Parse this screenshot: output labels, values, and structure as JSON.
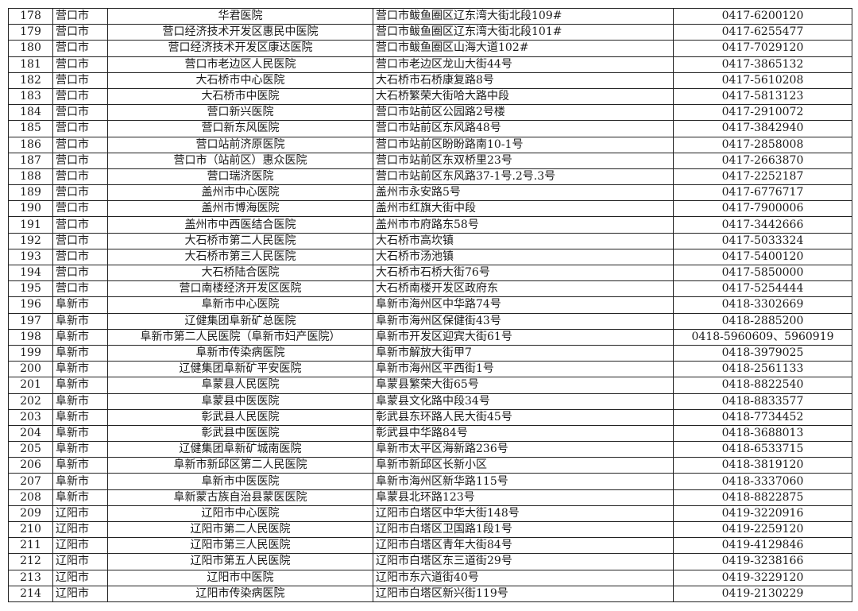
{
  "rows": [
    [
      "178",
      "营口市",
      "华君医院",
      "营口市鲅鱼圈区辽东湾大街北段109#",
      "0417-6200120"
    ],
    [
      "179",
      "营口市",
      "营口经济技术开发区惠民中医院",
      "营口市鲅鱼圈区辽东湾大街北段101#",
      "0417-6255477"
    ],
    [
      "180",
      "营口市",
      "营口经济技术开发区康达医院",
      "营口市鲅鱼圈区山海大道102#",
      "0417-7029120"
    ],
    [
      "181",
      "营口市",
      "营口市老边区人民医院",
      "营口市老边区龙山大街44号",
      "0417-3865132"
    ],
    [
      "182",
      "营口市",
      "大石桥市中心医院",
      "大石桥市石桥康复路8号",
      "0417-5610208"
    ],
    [
      "183",
      "营口市",
      "大石桥市中医院",
      "大石桥繁荣大街哈大路中段",
      "0417-5813123"
    ],
    [
      "184",
      "营口市",
      "营口新兴医院",
      "营口市站前区公园路2号楼",
      "0417-2910072"
    ],
    [
      "185",
      "营口市",
      "营口新东风医院",
      "营口市站前区东风路48号",
      "0417-3842940"
    ],
    [
      "186",
      "营口市",
      "营口站前济原医院",
      "营口市站前区盼盼路南10-1号",
      "0417-2858008"
    ],
    [
      "187",
      "营口市",
      "营口市（站前区）惠众医院",
      "营口市站前区东双桥里23号",
      "0417-2663870"
    ],
    [
      "188",
      "营口市",
      "营口瑞济医院",
      "营口市站前区东风路37-1号.2号.3号",
      "0417-2252187"
    ],
    [
      "189",
      "营口市",
      "盖州市中心医院",
      "盖州市永安路5号",
      "0417-6776717"
    ],
    [
      "190",
      "营口市",
      "盖州市博海医院",
      "盖州市红旗大街中段",
      "0417-7900006"
    ],
    [
      "191",
      "营口市",
      "盖州市中西医结合医院",
      "盖州市市府路东58号",
      "0417-3442666"
    ],
    [
      "192",
      "营口市",
      "大石桥市第二人民医院",
      "大石桥市高坎镇",
      "0417-5033324"
    ],
    [
      "193",
      "营口市",
      "大石桥市第三人民医院",
      "大石桥市汤池镇",
      "0417-5400120"
    ],
    [
      "194",
      "营口市",
      "大石桥陆合医院",
      "大石桥市石桥大街76号",
      "0417-5850000"
    ],
    [
      "195",
      "营口市",
      "营口南楼经济开发区医院",
      "大石桥南楼开发区政府东",
      "0417-5254444"
    ],
    [
      "196",
      "阜新市",
      "阜新市中心医院",
      "阜新市海州区中华路74号",
      "0418-3302669"
    ],
    [
      "197",
      "阜新市",
      "辽健集团阜新矿总医院",
      "阜新市海州区保健街43号",
      "0418-2885200"
    ],
    [
      "198",
      "阜新市",
      "阜新市第二人民医院（阜新市妇产医院）",
      "阜新市开发区迎宾大街61号",
      "0418-5960609、5960919"
    ],
    [
      "199",
      "阜新市",
      "阜新市传染病医院",
      "阜新市解放大街甲7",
      "0418-3979025"
    ],
    [
      "200",
      "阜新市",
      "辽健集团阜新矿平安医院",
      "阜新市海州区平西街1号",
      "0418-2561133"
    ],
    [
      "201",
      "阜新市",
      "阜蒙县人民医院",
      "阜蒙县繁荣大街65号",
      "0418-8822540"
    ],
    [
      "202",
      "阜新市",
      "阜蒙县中医医院",
      "阜蒙县文化路中段34号",
      "0418-8833577"
    ],
    [
      "203",
      "阜新市",
      "彰武县人民医院",
      "彰武县东环路人民大街45号",
      "0418-7734452"
    ],
    [
      "204",
      "阜新市",
      "彰武县中医医院",
      "彰武县中华路84号",
      "0418-3688013"
    ],
    [
      "205",
      "阜新市",
      "辽健集团阜新矿城南医院",
      "阜新市太平区海新路236号",
      "0418-6533715"
    ],
    [
      "206",
      "阜新市",
      "阜新市新邱区第二人民医院",
      "阜新市新邱区长新小区",
      "0418-3819120"
    ],
    [
      "207",
      "阜新市",
      "阜新市中医医院",
      "阜新市海州区新华路115号",
      "0418-3337060"
    ],
    [
      "208",
      "阜新市",
      "阜新蒙古族自治县蒙医医院",
      "阜蒙县北环路123号",
      "0418-8822875"
    ],
    [
      "209",
      "辽阳市",
      "辽阳市中心医院",
      "辽阳市白塔区中华大街148号",
      "0419-3220916"
    ],
    [
      "210",
      "辽阳市",
      "辽阳市第二人民医院",
      "辽阳市白塔区卫国路1段1号",
      "0419-2259120"
    ],
    [
      "211",
      "辽阳市",
      "辽阳市第三人民医院",
      "辽阳市白塔区青年大街84号",
      "0419-4129846"
    ],
    [
      "212",
      "辽阳市",
      "辽阳市第五人民医院",
      "辽阳市白塔区东三道街29号",
      "0419-3238166"
    ],
    [
      "213",
      "辽阳市",
      "辽阳市中医院",
      "辽阳市东六道街40号",
      "0419-3229120"
    ],
    [
      "214",
      "辽阳市",
      "辽阳市传染病医院",
      "辽阳市白塔区新兴街119号",
      "0419-2130229"
    ]
  ]
}
